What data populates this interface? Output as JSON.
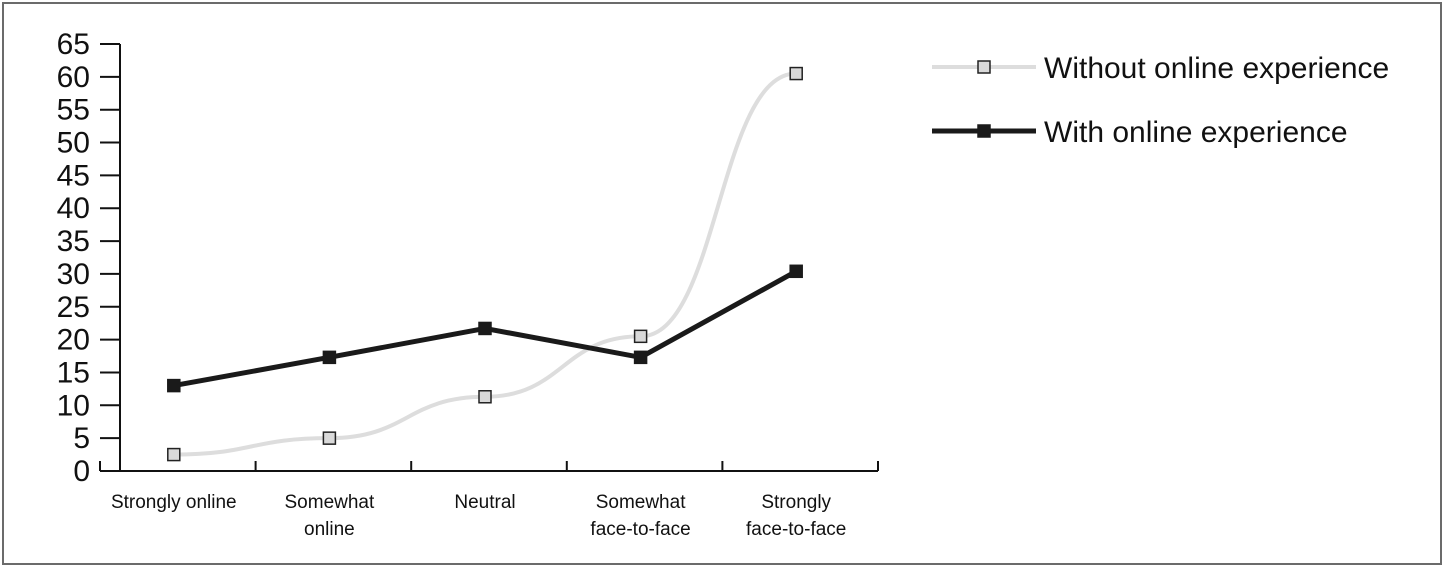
{
  "chart_data": {
    "type": "line",
    "title": "",
    "xlabel": "",
    "ylabel": "",
    "categories": [
      [
        "Strongly online"
      ],
      [
        "Somewhat",
        "online"
      ],
      [
        "Neutral"
      ],
      [
        "Somewhat",
        "face-to-face"
      ],
      [
        "Strongly",
        "face-to-face"
      ]
    ],
    "ylim": [
      0,
      65
    ],
    "yticks": [
      "0",
      "5",
      "10",
      "15",
      "20",
      "25",
      "30",
      "35",
      "40",
      "45",
      "50",
      "55",
      "60",
      "65"
    ],
    "grid": false,
    "legend_position": "top-right",
    "series": [
      {
        "name": "Without online experience",
        "values": [
          2.5,
          5,
          11.3,
          20.5,
          60.5
        ],
        "line_color": "#dddddd",
        "marker_fill": "#d9d9d9",
        "marker_stroke": "#222222"
      },
      {
        "name": "With online experience",
        "values": [
          13,
          17.3,
          21.7,
          17.3,
          30.4
        ],
        "line_color": "#1a1a1a",
        "marker_fill": "#1a1a1a",
        "marker_stroke": "#1a1a1a"
      }
    ]
  }
}
